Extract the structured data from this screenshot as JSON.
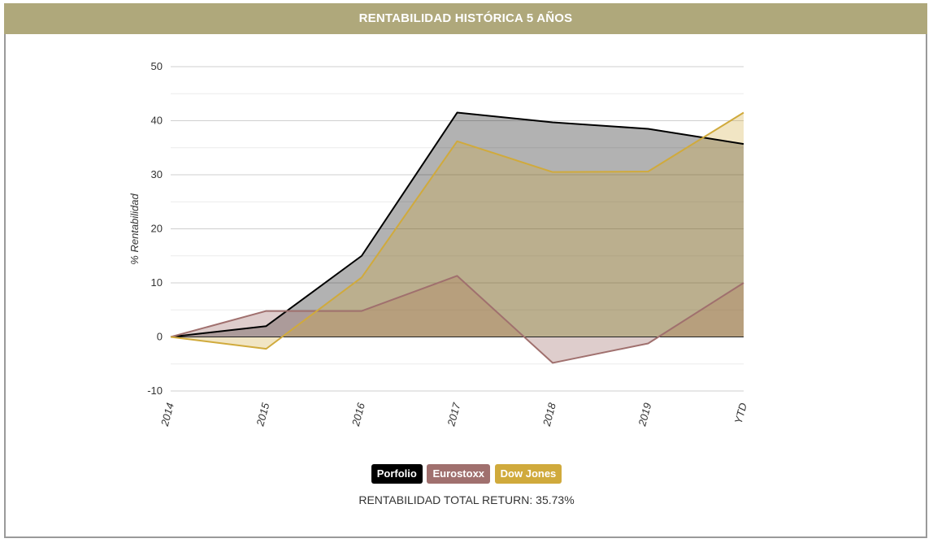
{
  "header": {
    "title": "RENTABILIDAD HISTÓRICA 5 AÑOS"
  },
  "chart_data": {
    "type": "area",
    "title": "RENTABILIDAD HISTÓRICA 5 AÑOS",
    "xlabel": "",
    "ylabel": "% Rentabilidad",
    "categories": [
      "2014",
      "2015",
      "2016",
      "2017",
      "2018",
      "2019",
      "YTD"
    ],
    "ylim": [
      -10,
      50
    ],
    "yticks": [
      -10,
      0,
      10,
      20,
      30,
      40,
      50
    ],
    "grid": true,
    "series": [
      {
        "name": "Porfolio",
        "color": "#000000",
        "values": [
          0,
          2,
          15,
          41.5,
          39.7,
          38.5,
          35.7
        ]
      },
      {
        "name": "Eurostoxx",
        "color": "#a0706e",
        "values": [
          0,
          4.8,
          4.8,
          11.3,
          -4.8,
          -1.2,
          10
        ]
      },
      {
        "name": "Dow Jones",
        "color": "#d0aa3c",
        "values": [
          0,
          -2.2,
          11,
          36.2,
          30.5,
          30.6,
          41.5
        ]
      }
    ]
  },
  "legend": {
    "items": [
      "Porfolio",
      "Eurostoxx",
      "Dow Jones"
    ]
  },
  "footer": {
    "total_return": "RENTABILIDAD TOTAL RETURN: 35.73%"
  }
}
